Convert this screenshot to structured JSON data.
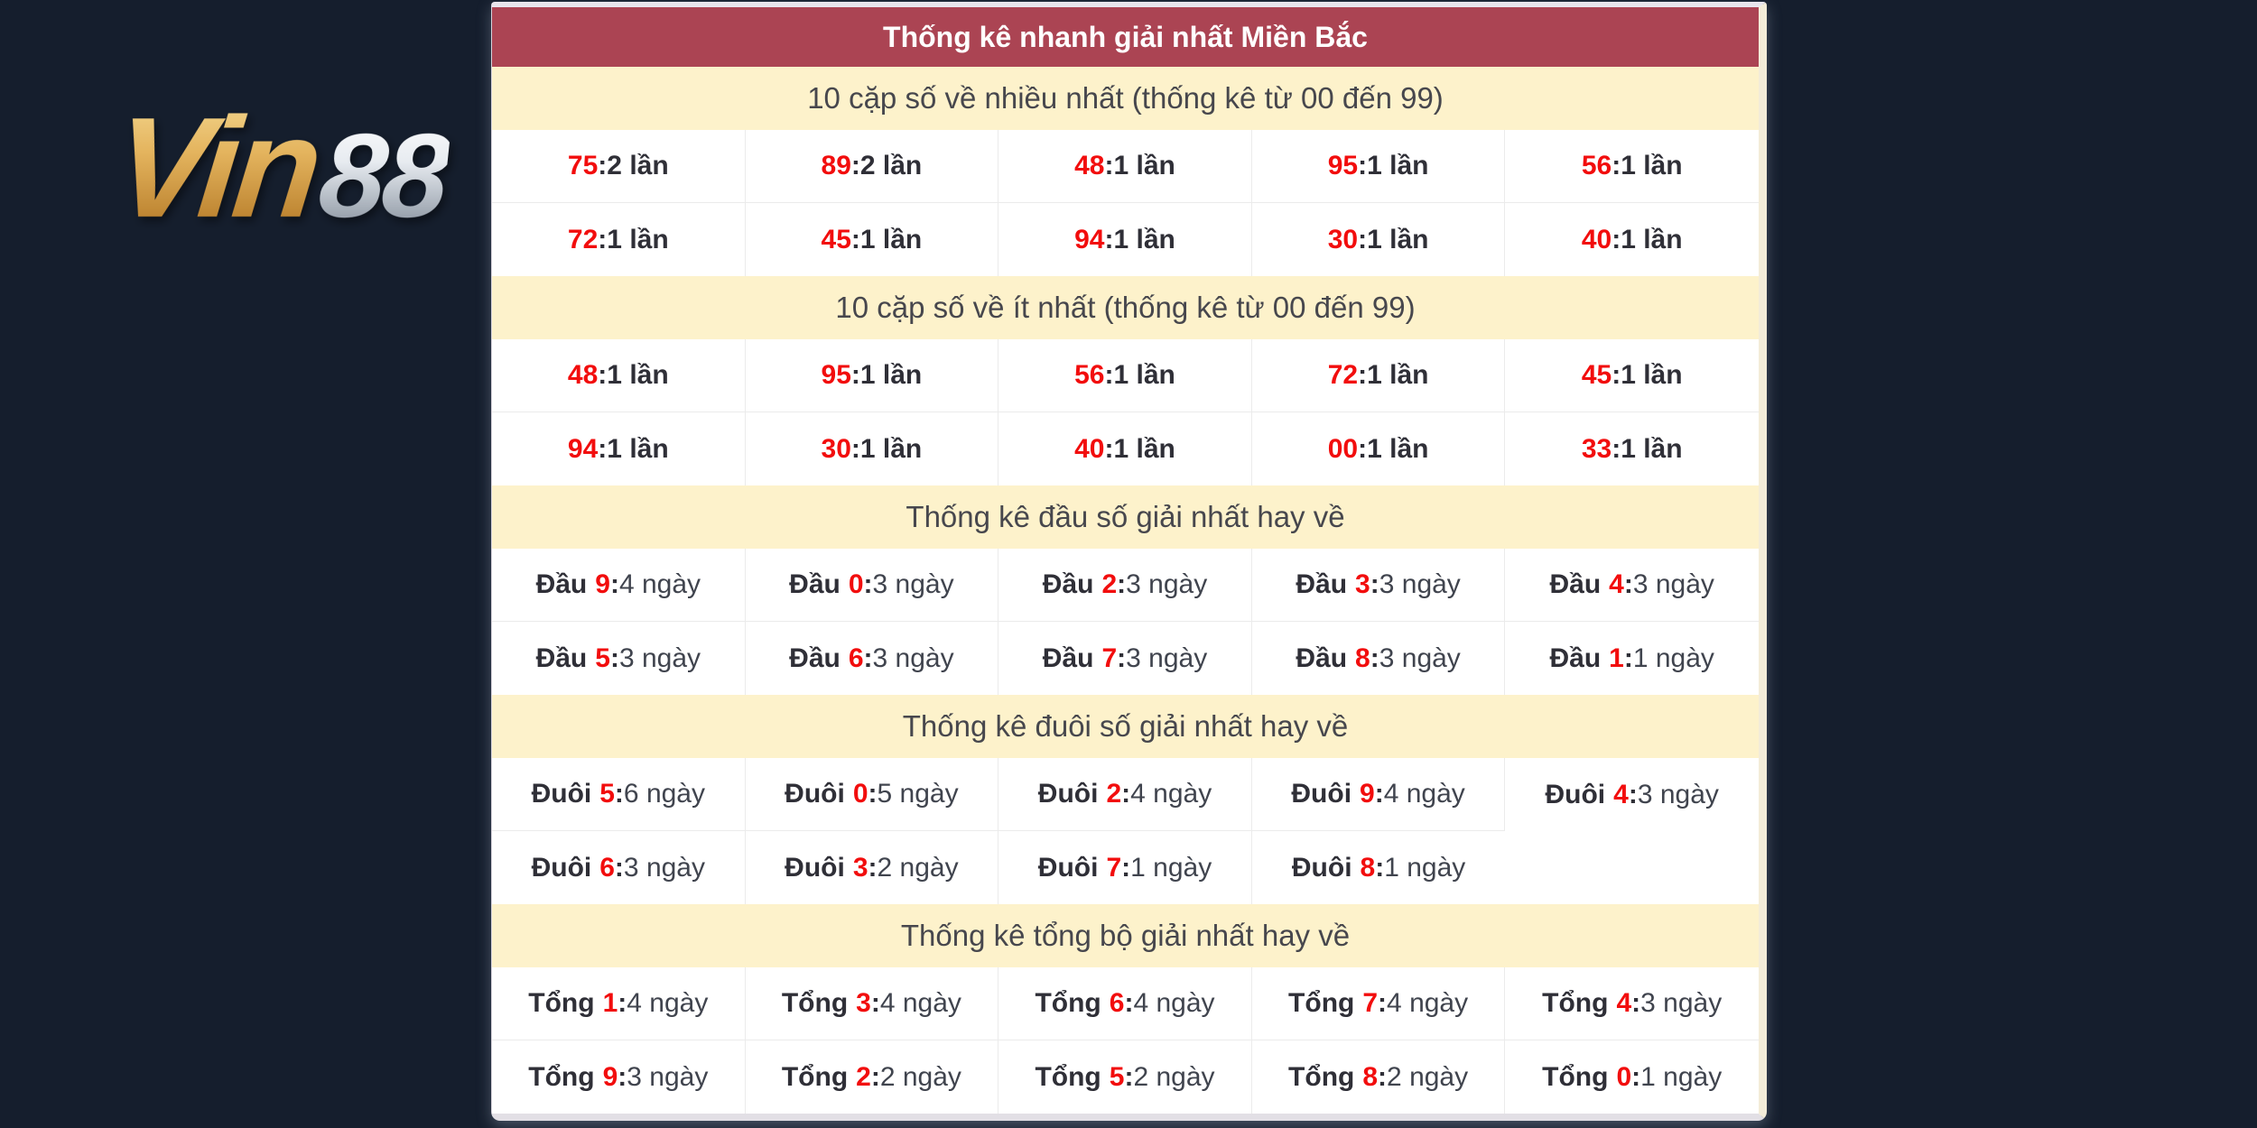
{
  "page": {
    "background_color": "#151e2d"
  },
  "logo": {
    "part_gold": "Vin",
    "part_silver": "88",
    "gold_color": "#d9a54e",
    "silver_color": "#dfe3e8"
  },
  "panel": {
    "title": "Thống kê nhanh giải nhất Miền Bắc",
    "title_bg_color": "#ab4453",
    "title_text_color": "#ffffff",
    "section_bg_color": "#fdf2cb",
    "number_color": "#f20d0d",
    "sections": [
      {
        "id": "most-frequent-pairs",
        "header": "10 cặp số về nhiều nhất (thống kê từ 00 đến 99)",
        "style": "pair",
        "separator": " : ",
        "rows": [
          [
            {
              "num": "75",
              "count": "2 lần"
            },
            {
              "num": "89",
              "count": "2 lần"
            },
            {
              "num": "48",
              "count": "1 lần"
            },
            {
              "num": "95",
              "count": "1 lần"
            },
            {
              "num": "56",
              "count": "1 lần"
            }
          ],
          [
            {
              "num": "72",
              "count": "1 lần"
            },
            {
              "num": "45",
              "count": "1 lần"
            },
            {
              "num": "94",
              "count": "1 lần"
            },
            {
              "num": "30",
              "count": "1 lần"
            },
            {
              "num": "40",
              "count": "1 lần"
            }
          ]
        ]
      },
      {
        "id": "least-frequent-pairs",
        "header": "10 cặp số về ít nhất (thống kê từ 00 đến 99)",
        "style": "pair",
        "separator": " : ",
        "rows": [
          [
            {
              "num": "48",
              "count": "1 lần"
            },
            {
              "num": "95",
              "count": "1 lần"
            },
            {
              "num": "56",
              "count": "1 lần"
            },
            {
              "num": "72",
              "count": "1 lần"
            },
            {
              "num": "45",
              "count": "1 lần"
            }
          ],
          [
            {
              "num": "94",
              "count": "1 lần"
            },
            {
              "num": "30",
              "count": "1 lần"
            },
            {
              "num": "40",
              "count": "1 lần"
            },
            {
              "num": "00",
              "count": "1 lần"
            },
            {
              "num": "33",
              "count": "1 lần"
            }
          ]
        ]
      },
      {
        "id": "head-digit-stats",
        "header": "Thống kê đầu số giải nhất hay về",
        "style": "labeled",
        "label": "Đầu",
        "separator": ": ",
        "rows": [
          [
            {
              "num": "9",
              "count": "4 ngày"
            },
            {
              "num": "0",
              "count": "3 ngày"
            },
            {
              "num": "2",
              "count": "3 ngày"
            },
            {
              "num": "3",
              "count": "3 ngày"
            },
            {
              "num": "4",
              "count": "3 ngày"
            }
          ],
          [
            {
              "num": "5",
              "count": "3 ngày"
            },
            {
              "num": "6",
              "count": "3 ngày"
            },
            {
              "num": "7",
              "count": "3 ngày"
            },
            {
              "num": "8",
              "count": "3 ngày"
            },
            {
              "num": "1",
              "count": "1 ngày"
            }
          ]
        ]
      },
      {
        "id": "tail-digit-stats",
        "header": "Thống kê đuôi số giải nhất hay về",
        "style": "labeled",
        "label": "Đuôi",
        "separator": ": ",
        "rows": [
          [
            {
              "num": "5",
              "count": "6 ngày"
            },
            {
              "num": "0",
              "count": "5 ngày"
            },
            {
              "num": "2",
              "count": "4 ngày"
            },
            {
              "num": "9",
              "count": "4 ngày"
            },
            {
              "num": "4",
              "count": "3 ngày"
            }
          ],
          [
            {
              "num": "6",
              "count": "3 ngày"
            },
            {
              "num": "3",
              "count": "2 ngày"
            },
            {
              "num": "7",
              "count": "1 ngày"
            },
            {
              "num": "8",
              "count": "1 ngày"
            },
            null
          ]
        ]
      },
      {
        "id": "sum-stats",
        "header": "Thống kê tổng bộ giải nhất hay về",
        "style": "labeled",
        "label": "Tổng",
        "separator": ": ",
        "rows": [
          [
            {
              "num": "1",
              "count": "4 ngày"
            },
            {
              "num": "3",
              "count": "4 ngày"
            },
            {
              "num": "6",
              "count": "4 ngày"
            },
            {
              "num": "7",
              "count": "4 ngày"
            },
            {
              "num": "4",
              "count": "3 ngày"
            }
          ],
          [
            {
              "num": "9",
              "count": "3 ngày"
            },
            {
              "num": "2",
              "count": "2 ngày"
            },
            {
              "num": "5",
              "count": "2 ngày"
            },
            {
              "num": "8",
              "count": "2 ngày"
            },
            {
              "num": "0",
              "count": "1 ngày"
            }
          ]
        ]
      }
    ]
  }
}
